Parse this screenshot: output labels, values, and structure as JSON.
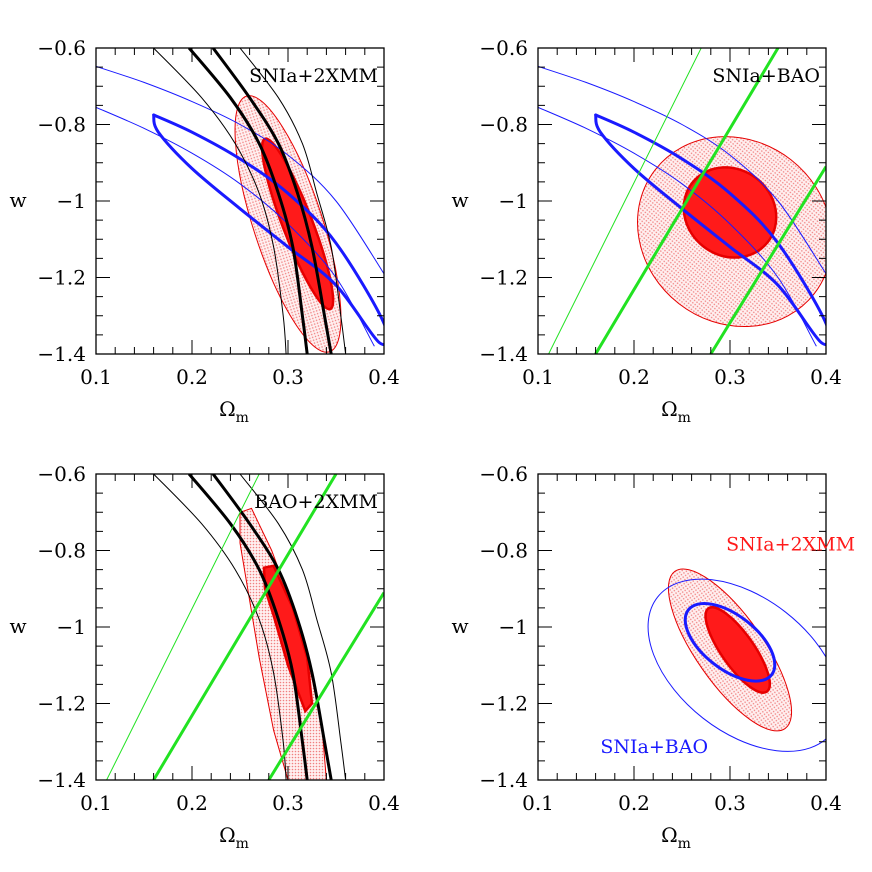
{
  "colors": {
    "red": "#ff1a1a",
    "red_outline": "#e60000",
    "red_fill_light": "#ffb0b0",
    "blue": "#1a1aff",
    "green": "#22e222",
    "black": "#000000"
  },
  "chart_data": [
    {
      "type": "contour",
      "panel": "top-left",
      "label": "SNIa+2XMM",
      "label_color": "#000000",
      "xlabel": "Ω",
      "xlabel_sub": "m",
      "ylabel": "w",
      "xlim": [
        0.1,
        0.4
      ],
      "ylim": [
        -1.4,
        -0.6
      ],
      "xticks": [
        0.1,
        0.2,
        0.3,
        0.4
      ],
      "xtick_labels": [
        "0.1",
        "0.2",
        "0.3",
        "0.4"
      ],
      "yticks": [
        -1.4,
        -1.2,
        -1.0,
        -0.8,
        -0.6
      ],
      "ytick_labels": [
        "−1.4",
        "−1.2",
        "−1",
        "−0.8",
        "−0.6"
      ],
      "ellipses": [
        {
          "name": "",
          "role": "combined 2σ",
          "color": "#e60000",
          "fill": "#ffb0b0",
          "cx": 0.3,
          "cy": -1.06,
          "a": 0.14,
          "b": 0.036,
          "angle_deg": -72
        },
        {
          "name": "",
          "role": "combined 1σ",
          "color": "#e60000",
          "fill": "#ff1a1a",
          "cx": 0.31,
          "cy": -1.06,
          "a": 0.095,
          "b": 0.0155,
          "angle_deg": -69
        }
      ],
      "curves": [
        {
          "name": "",
          "role": "SNIa 1σ",
          "color": "#1a1aff",
          "width": 3,
          "closed": true,
          "points": [
            [
              0.16,
              -0.775
            ],
            [
              0.2,
              -0.82
            ],
            [
              0.25,
              -0.89
            ],
            [
              0.3,
              -0.98
            ],
            [
              0.35,
              -1.11
            ],
            [
              0.4,
              -1.32
            ],
            [
              0.395,
              -1.37
            ],
            [
              0.35,
              -1.22
            ],
            [
              0.3,
              -1.12
            ],
            [
              0.25,
              -1.02
            ],
            [
              0.2,
              -0.915
            ],
            [
              0.165,
              -0.82
            ],
            [
              0.16,
              -0.775
            ]
          ]
        },
        {
          "name": "",
          "role": "SNIa 2σ upper",
          "color": "#1a1aff",
          "width": 1,
          "closed": false,
          "points": [
            [
              0.1,
              -0.648
            ],
            [
              0.15,
              -0.69
            ],
            [
              0.2,
              -0.74
            ],
            [
              0.25,
              -0.8
            ],
            [
              0.3,
              -0.88
            ],
            [
              0.35,
              -1.0
            ],
            [
              0.4,
              -1.19
            ]
          ]
        },
        {
          "name": "",
          "role": "SNIa 2σ lower",
          "color": "#1a1aff",
          "width": 1,
          "closed": false,
          "points": [
            [
              0.1,
              -0.755
            ],
            [
              0.15,
              -0.81
            ],
            [
              0.2,
              -0.875
            ],
            [
              0.25,
              -0.955
            ],
            [
              0.3,
              -1.06
            ],
            [
              0.35,
              -1.2
            ],
            [
              0.39,
              -1.38
            ]
          ]
        },
        {
          "name": "",
          "role": "2XMM 1σ left",
          "color": "#000000",
          "width": 3,
          "closed": false,
          "points": [
            [
              0.197,
              -0.6
            ],
            [
              0.24,
              -0.73
            ],
            [
              0.27,
              -0.85
            ],
            [
              0.29,
              -0.98
            ],
            [
              0.305,
              -1.12
            ],
            [
              0.315,
              -1.3
            ],
            [
              0.32,
              -1.4
            ]
          ]
        },
        {
          "name": "",
          "role": "2XMM 1σ right",
          "color": "#000000",
          "width": 3,
          "closed": false,
          "points": [
            [
              0.222,
              -0.6
            ],
            [
              0.26,
              -0.73
            ],
            [
              0.29,
              -0.85
            ],
            [
              0.31,
              -0.98
            ],
            [
              0.325,
              -1.12
            ],
            [
              0.338,
              -1.3
            ],
            [
              0.345,
              -1.4
            ]
          ]
        },
        {
          "name": "",
          "role": "2XMM 2σ left",
          "color": "#000000",
          "width": 1,
          "closed": false,
          "points": [
            [
              0.16,
              -0.6
            ],
            [
              0.21,
              -0.73
            ],
            [
              0.245,
              -0.85
            ],
            [
              0.27,
              -0.98
            ],
            [
              0.285,
              -1.12
            ],
            [
              0.295,
              -1.3
            ],
            [
              0.298,
              -1.4
            ]
          ]
        },
        {
          "name": "",
          "role": "2XMM 2σ right",
          "color": "#000000",
          "width": 1,
          "closed": false,
          "points": [
            [
              0.25,
              -0.6
            ],
            [
              0.29,
              -0.73
            ],
            [
              0.315,
              -0.85
            ],
            [
              0.33,
              -0.98
            ],
            [
              0.345,
              -1.12
            ],
            [
              0.355,
              -1.3
            ],
            [
              0.36,
              -1.4
            ]
          ]
        }
      ]
    },
    {
      "type": "contour",
      "panel": "top-right",
      "label": "SNIa+BAO",
      "label_color": "#000000",
      "xlabel": "Ω",
      "xlabel_sub": "m",
      "ylabel": "w",
      "xlim": [
        0.1,
        0.4
      ],
      "ylim": [
        -1.4,
        -0.6
      ],
      "xticks": [
        0.1,
        0.2,
        0.3,
        0.4
      ],
      "xtick_labels": [
        "0.1",
        "0.2",
        "0.3",
        "0.4"
      ],
      "yticks": [
        -1.4,
        -1.2,
        -1.0,
        -0.8,
        -0.6
      ],
      "ytick_labels": [
        "−1.4",
        "−1.2",
        "−1",
        "−0.8",
        "−0.6"
      ],
      "ellipses": [
        {
          "name": "",
          "role": "combined 2σ",
          "color": "#e60000",
          "fill": "#ffb0b0",
          "cx": 0.305,
          "cy": -1.08,
          "a": 0.105,
          "b": 0.095,
          "angle_deg": -38,
          "shape": "aspect"
        },
        {
          "name": "",
          "role": "combined 1σ",
          "color": "#e60000",
          "fill": "#ff1a1a",
          "cx": 0.3,
          "cy": -1.03,
          "a": 0.05,
          "b": 0.045,
          "angle_deg": -38,
          "shape": "aspect"
        }
      ],
      "curves": [
        {
          "name": "",
          "role": "SNIa 1σ",
          "color": "#1a1aff",
          "width": 3,
          "closed": true,
          "points": [
            [
              0.16,
              -0.775
            ],
            [
              0.2,
              -0.82
            ],
            [
              0.25,
              -0.89
            ],
            [
              0.3,
              -0.98
            ],
            [
              0.35,
              -1.11
            ],
            [
              0.4,
              -1.32
            ],
            [
              0.395,
              -1.37
            ],
            [
              0.35,
              -1.22
            ],
            [
              0.3,
              -1.12
            ],
            [
              0.25,
              -1.02
            ],
            [
              0.2,
              -0.915
            ],
            [
              0.165,
              -0.82
            ],
            [
              0.16,
              -0.775
            ]
          ]
        },
        {
          "name": "",
          "role": "SNIa 2σ upper",
          "color": "#1a1aff",
          "width": 1,
          "closed": false,
          "points": [
            [
              0.1,
              -0.648
            ],
            [
              0.15,
              -0.69
            ],
            [
              0.2,
              -0.74
            ],
            [
              0.25,
              -0.8
            ],
            [
              0.3,
              -0.88
            ],
            [
              0.35,
              -1.0
            ],
            [
              0.4,
              -1.19
            ]
          ]
        },
        {
          "name": "",
          "role": "SNIa 2σ lower",
          "color": "#1a1aff",
          "width": 1,
          "closed": false,
          "points": [
            [
              0.1,
              -0.755
            ],
            [
              0.15,
              -0.81
            ],
            [
              0.2,
              -0.875
            ],
            [
              0.25,
              -0.955
            ],
            [
              0.3,
              -1.06
            ],
            [
              0.35,
              -1.2
            ],
            [
              0.39,
              -1.38
            ]
          ]
        },
        {
          "name": "",
          "role": "BAO 1σ left",
          "color": "#22e222",
          "width": 3,
          "closed": false,
          "points": [
            [
              0.16,
              -1.4
            ],
            [
              0.35,
              -0.6
            ]
          ]
        },
        {
          "name": "",
          "role": "BAO 1σ right",
          "color": "#22e222",
          "width": 3,
          "closed": false,
          "points": [
            [
              0.28,
              -1.4
            ],
            [
              0.4,
              -0.91
            ]
          ]
        },
        {
          "name": "",
          "role": "BAO 2σ left",
          "color": "#22e222",
          "width": 1,
          "closed": false,
          "points": [
            [
              0.111,
              -1.4
            ],
            [
              0.27,
              -0.6
            ]
          ]
        }
      ]
    },
    {
      "type": "contour",
      "panel": "bottom-left",
      "label": "BAO+2XMM",
      "label_color": "#000000",
      "xlabel": "Ω",
      "xlabel_sub": "m",
      "ylabel": "w",
      "xlim": [
        0.1,
        0.4
      ],
      "ylim": [
        -1.4,
        -0.6
      ],
      "xticks": [
        0.1,
        0.2,
        0.3,
        0.4
      ],
      "xtick_labels": [
        "0.1",
        "0.2",
        "0.3",
        "0.4"
      ],
      "yticks": [
        -1.4,
        -1.2,
        -1.0,
        -0.8,
        -0.6
      ],
      "ytick_labels": [
        "−1.4",
        "−1.2",
        "−1",
        "−0.8",
        "−0.6"
      ],
      "ellipses": [],
      "curves": [
        {
          "name": "",
          "role": "combined 2σ",
          "color": "#e60000",
          "fill": "#ffb0b0",
          "width": 1,
          "closed": true,
          "points": [
            [
              0.25,
              -0.7
            ],
            [
              0.262,
              -0.69
            ],
            [
              0.283,
              -0.8
            ],
            [
              0.305,
              -0.95
            ],
            [
              0.322,
              -1.1
            ],
            [
              0.335,
              -1.25
            ],
            [
              0.34,
              -1.4
            ],
            [
              0.3,
              -1.4
            ],
            [
              0.285,
              -1.27
            ],
            [
              0.27,
              -1.08
            ],
            [
              0.258,
              -0.9
            ],
            [
              0.25,
              -0.78
            ],
            [
              0.25,
              -0.7
            ]
          ]
        },
        {
          "name": "",
          "role": "combined 1σ",
          "color": "#e60000",
          "fill": "#ff1a1a",
          "width": 2.5,
          "closed": true,
          "points": [
            [
              0.275,
              -0.845
            ],
            [
              0.285,
              -0.84
            ],
            [
              0.305,
              -0.95
            ],
            [
              0.32,
              -1.08
            ],
            [
              0.325,
              -1.2
            ],
            [
              0.318,
              -1.22
            ],
            [
              0.3,
              -1.1
            ],
            [
              0.285,
              -0.97
            ],
            [
              0.276,
              -0.9
            ],
            [
              0.275,
              -0.845
            ]
          ]
        },
        {
          "name": "",
          "role": "2XMM 1σ left",
          "color": "#000000",
          "width": 3,
          "closed": false,
          "points": [
            [
              0.197,
              -0.6
            ],
            [
              0.24,
              -0.73
            ],
            [
              0.27,
              -0.85
            ],
            [
              0.29,
              -0.98
            ],
            [
              0.305,
              -1.12
            ],
            [
              0.315,
              -1.3
            ],
            [
              0.32,
              -1.4
            ]
          ]
        },
        {
          "name": "",
          "role": "2XMM 1σ right",
          "color": "#000000",
          "width": 3,
          "closed": false,
          "points": [
            [
              0.222,
              -0.6
            ],
            [
              0.26,
              -0.73
            ],
            [
              0.29,
              -0.85
            ],
            [
              0.31,
              -0.98
            ],
            [
              0.325,
              -1.12
            ],
            [
              0.338,
              -1.3
            ],
            [
              0.345,
              -1.4
            ]
          ]
        },
        {
          "name": "",
          "role": "2XMM 2σ left",
          "color": "#000000",
          "width": 1,
          "closed": false,
          "points": [
            [
              0.16,
              -0.6
            ],
            [
              0.21,
              -0.73
            ],
            [
              0.245,
              -0.85
            ],
            [
              0.27,
              -0.98
            ],
            [
              0.285,
              -1.12
            ],
            [
              0.295,
              -1.3
            ],
            [
              0.298,
              -1.4
            ]
          ]
        },
        {
          "name": "",
          "role": "2XMM 2σ right",
          "color": "#000000",
          "width": 1,
          "closed": false,
          "points": [
            [
              0.25,
              -0.6
            ],
            [
              0.29,
              -0.73
            ],
            [
              0.315,
              -0.85
            ],
            [
              0.33,
              -0.98
            ],
            [
              0.345,
              -1.12
            ],
            [
              0.355,
              -1.3
            ],
            [
              0.36,
              -1.4
            ]
          ]
        },
        {
          "name": "",
          "role": "BAO 1σ left",
          "color": "#22e222",
          "width": 3,
          "closed": false,
          "points": [
            [
              0.16,
              -1.4
            ],
            [
              0.35,
              -0.6
            ]
          ]
        },
        {
          "name": "",
          "role": "BAO 1σ right",
          "color": "#22e222",
          "width": 3,
          "closed": false,
          "points": [
            [
              0.28,
              -1.4
            ],
            [
              0.4,
              -0.91
            ]
          ]
        },
        {
          "name": "",
          "role": "BAO 2σ left",
          "color": "#22e222",
          "width": 1,
          "closed": false,
          "points": [
            [
              0.111,
              -1.4
            ],
            [
              0.27,
              -0.6
            ]
          ]
        }
      ]
    },
    {
      "type": "contour",
      "panel": "bottom-right",
      "label": "",
      "label_color": "#000000",
      "xlabel": "Ω",
      "xlabel_sub": "m",
      "ylabel": "w",
      "xlim": [
        0.1,
        0.4
      ],
      "ylim": [
        -1.4,
        -0.6
      ],
      "xticks": [
        0.1,
        0.2,
        0.3,
        0.4
      ],
      "xtick_labels": [
        "0.1",
        "0.2",
        "0.3",
        "0.4"
      ],
      "yticks": [
        -1.4,
        -1.2,
        -1.0,
        -0.8,
        -0.6
      ],
      "ytick_labels": [
        "−1.4",
        "−1.2",
        "−1",
        "−0.8",
        "−0.6"
      ],
      "annotations": [
        {
          "text": "SNIa+2XMM",
          "x": 0.296,
          "y": -0.8,
          "color": "#ff1a1a"
        },
        {
          "text": "SNIa+BAO",
          "x": 0.165,
          "y": -1.33,
          "color": "#1a1aff"
        }
      ],
      "ellipses": [
        {
          "name": "",
          "role": "SNIa+BAO 2σ",
          "color": "#1a1aff",
          "fill": "none",
          "width": 1,
          "cx": 0.315,
          "cy": -1.1,
          "a": 0.115,
          "b": 0.07,
          "angle_deg": -38,
          "shape": "aspect"
        },
        {
          "name": "",
          "role": "SNIa+BAO 1σ",
          "color": "#1a1aff",
          "fill": "none",
          "width": 3,
          "cx": 0.3,
          "cy": -1.04,
          "a": 0.055,
          "b": 0.028,
          "angle_deg": -38,
          "shape": "aspect"
        },
        {
          "name": "",
          "role": "SNIa+2XMM 2σ",
          "color": "#e60000",
          "fill": "#ffb0b0",
          "width": 1,
          "cx": 0.3,
          "cy": -1.06,
          "a": 0.1,
          "b": 0.035,
          "angle_deg": -55,
          "shape": "aspect"
        },
        {
          "name": "",
          "role": "SNIa+2XMM 1σ",
          "color": "#e60000",
          "fill": "#ff1a1a",
          "width": 2.5,
          "cx": 0.308,
          "cy": -1.06,
          "a": 0.053,
          "b": 0.017,
          "angle_deg": -55,
          "shape": "aspect"
        }
      ],
      "curves": []
    }
  ]
}
